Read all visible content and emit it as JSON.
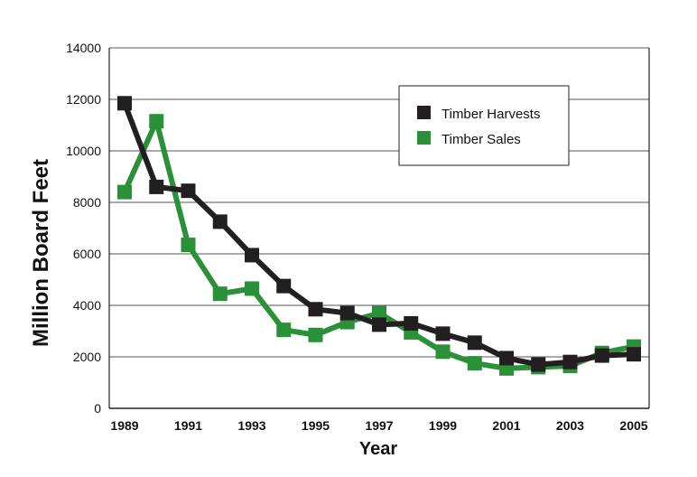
{
  "chart_data": {
    "type": "line",
    "xlabel": "Year",
    "ylabel": "Million Board Feet",
    "ylim": [
      0,
      14000
    ],
    "yticks": [
      "0",
      "2000",
      "4000",
      "6000",
      "8000",
      "10000",
      "12000",
      "14000"
    ],
    "xlim": [
      1989,
      2005
    ],
    "xticks": [
      "1989",
      "1991",
      "1993",
      "1995",
      "1997",
      "1999",
      "2001",
      "2003",
      "2005"
    ],
    "grid": "horizontal",
    "legend_position": "top-right",
    "x": [
      1989,
      1990,
      1991,
      1992,
      1993,
      1994,
      1995,
      1996,
      1997,
      1998,
      1999,
      2000,
      2001,
      2002,
      2003,
      2004,
      2005
    ],
    "series": [
      {
        "name": "Timber Harvests",
        "color": "#231f20",
        "values": [
          11850,
          8600,
          8450,
          7250,
          5950,
          4750,
          3850,
          3700,
          3250,
          3300,
          2900,
          2550,
          1950,
          1700,
          1800,
          2050,
          2100
        ]
      },
      {
        "name": "Timber Sales",
        "color": "#2a9138",
        "values": [
          8400,
          11150,
          6350,
          4450,
          4650,
          3050,
          2850,
          3350,
          3700,
          2950,
          2200,
          1750,
          1550,
          1600,
          1650,
          2150,
          2400
        ]
      }
    ]
  }
}
